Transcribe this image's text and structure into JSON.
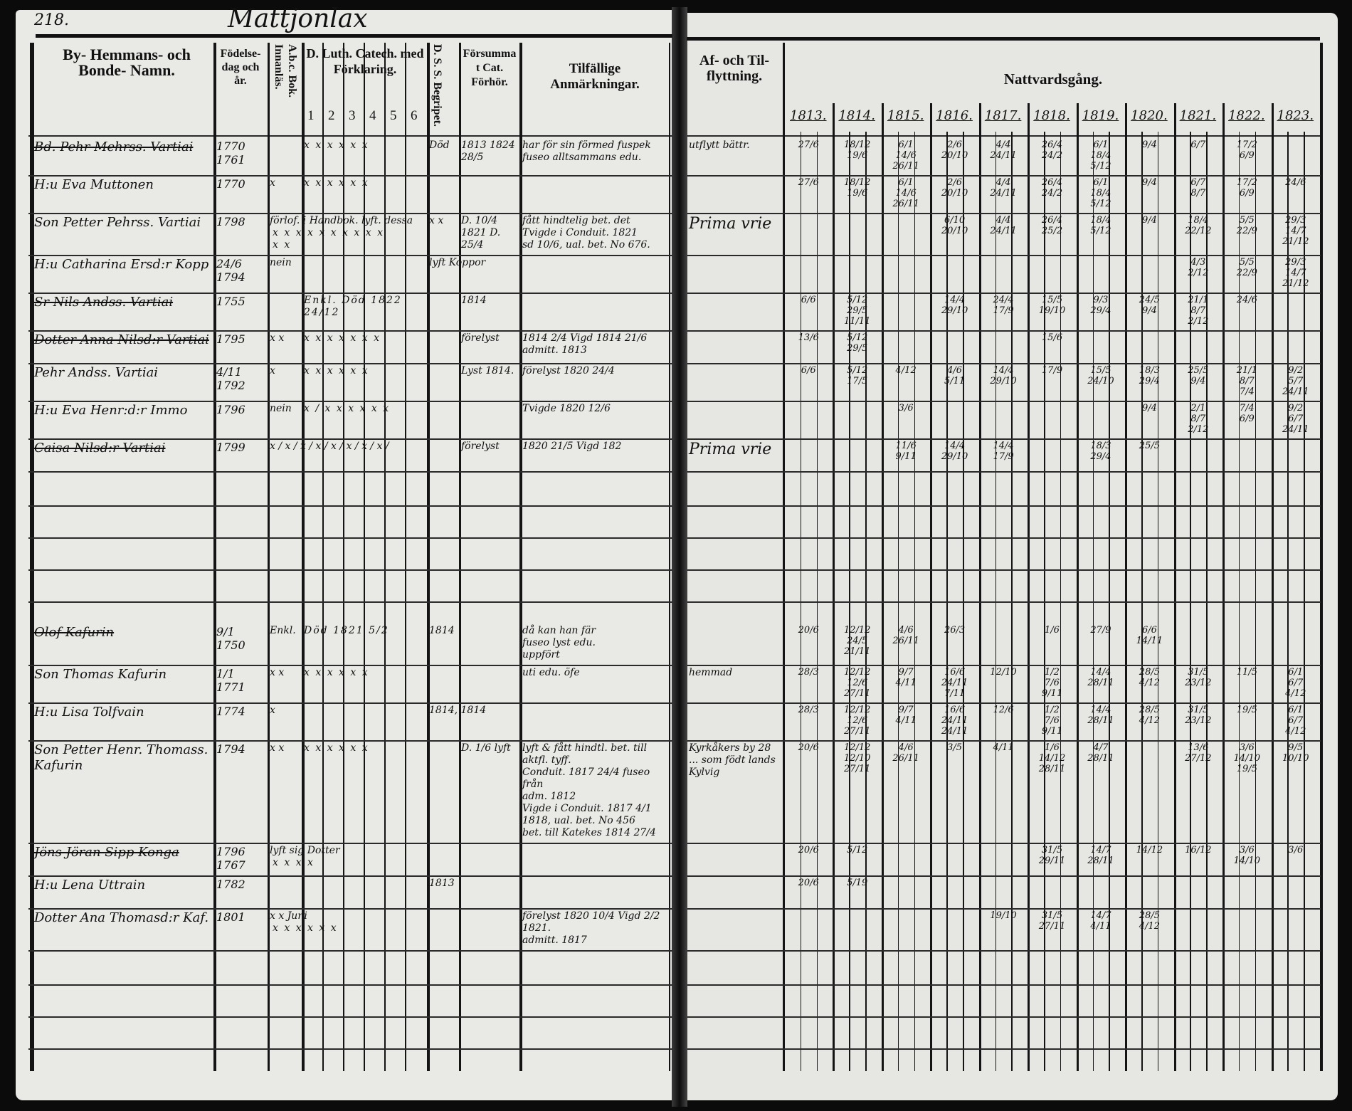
{
  "page_number": "218.",
  "parish_title": "Mattjonlax",
  "headers": {
    "name": "By- Hemmans- och Bonde- Namn.",
    "birth": "Födelse-dag och år.",
    "abc": "A.b.c. Bok. Innanläs.",
    "catechism": "D. Luth. Catech. med Förklaring.",
    "catechism_parts": [
      "1",
      "2",
      "3",
      "4",
      "5",
      "6"
    ],
    "dss": "D. S. S. Begripet.",
    "forsummat": "Försummat Cat. Förhör.",
    "remarks": "Tilfällige Anmärkningar.",
    "flytt": "Af- och Til- flyttning.",
    "communion": "Nattvardsgång.",
    "years": [
      "1813.",
      "1814.",
      "1815.",
      "1816.",
      "1817.",
      "1818.",
      "1819.",
      "1820.",
      "1821.",
      "1822.",
      "1823."
    ]
  },
  "rows": [
    {
      "name": "Bd. Pehr Mehrss. Vartiai",
      "struck": true,
      "birth": "1770 1761",
      "abc": "",
      "catechism": "x x x x x x",
      "dss": "Död",
      "forsummat": "1813 1824 28/5",
      "remarks": [
        "har för sin förmed fuspek",
        "fuseo alltsammans edu."
      ],
      "flytt": "utflytt bättr.",
      "communion": [
        [
          "27/6"
        ],
        [
          "18/12",
          "19/6"
        ],
        [
          "6/1",
          "14/6",
          "26/11"
        ],
        [
          "2/6",
          "20/10"
        ],
        [
          "4/4",
          "24/11"
        ],
        [
          "26/4",
          "24/2"
        ],
        [
          "6/1",
          "18/4",
          "5/12"
        ],
        [
          "9/4"
        ],
        [
          "6/7"
        ],
        [
          "17/2",
          "6/9"
        ],
        []
      ]
    },
    {
      "name": "H:u Eva Muttonen",
      "struck": false,
      "birth": "1770",
      "abc": "x",
      "catechism": "x x x x x x",
      "dss": "",
      "forsummat": "",
      "remarks": [],
      "flytt": "",
      "communion": [
        [
          "27/6"
        ],
        [
          "18/12",
          "19/6"
        ],
        [
          "6/1",
          "14/6",
          "26/11"
        ],
        [
          "2/6",
          "20/10"
        ],
        [
          "4/4",
          "24/11"
        ],
        [
          "26/4",
          "24/2"
        ],
        [
          "6/1",
          "18/4",
          "5/12"
        ],
        [
          "9/4"
        ],
        [
          "6/7",
          "8/7"
        ],
        [
          "17/2",
          "6/9"
        ],
        [
          "24/6"
        ]
      ]
    },
    {
      "name": "Son Petter Pehrss. Vartiai",
      "struck": false,
      "birth": "1798",
      "abc": "förlof. i Handbok. lyft. dessa",
      "catechism": "x x x x x x x x x x x x",
      "dss": "x x",
      "forsummat": "D. 10/4 1821 D. 25/4",
      "remarks": [
        "fått hindtelig bet. det",
        "Tvigde i Conduit. 1821",
        "sd 10/6, ual. bet. No 676."
      ],
      "flytt": "",
      "note": "Prima vrie",
      "communion": [
        [],
        [],
        [],
        [
          "6/10",
          "20/10"
        ],
        [
          "4/4",
          "24/11"
        ],
        [
          "26/4",
          "25/2"
        ],
        [
          "18/4",
          "5/12"
        ],
        [
          "9/4"
        ],
        [
          "18/4",
          "22/12"
        ],
        [
          "5/5",
          "22/9"
        ],
        [
          "29/3",
          "14/7",
          "21/12"
        ]
      ]
    },
    {
      "name": "H:u Catharina Ersd:r Kopp",
      "struck": false,
      "birth": "24/6 1794",
      "abc": "nein",
      "catechism": "",
      "dss": "lyft Koppor",
      "forsummat": "",
      "remarks": [],
      "flytt": "",
      "communion": [
        [],
        [],
        [],
        [],
        [],
        [],
        [],
        [],
        [
          "4/3",
          "2/12"
        ],
        [
          "5/5",
          "22/9"
        ],
        [
          "29/3",
          "14/7",
          "21/12"
        ]
      ]
    },
    {
      "name": "Sr Nils Andss. Vartiai",
      "struck": true,
      "birth": "1755",
      "abc": "",
      "catechism": "Enkl. Död 1822 24/12",
      "dss": "",
      "forsummat": "1814",
      "remarks": [],
      "flytt": "",
      "communion": [
        [
          "6/6"
        ],
        [
          "5/12",
          "29/5",
          "11/11"
        ],
        [],
        [
          "14/4",
          "29/10"
        ],
        [
          "24/4",
          "17/9"
        ],
        [
          "15/5",
          "19/10"
        ],
        [
          "9/3",
          "29/4"
        ],
        [
          "24/5",
          "9/4"
        ],
        [
          "21/1",
          "8/7",
          "2/12"
        ],
        [
          "24/6"
        ],
        []
      ]
    },
    {
      "name": "Dotter Anna Nilsd:r Vartiai",
      "struck": true,
      "birth": "1795",
      "abc": "x x",
      "catechism": "x x x x x x x",
      "dss": "",
      "forsummat": "förelyst",
      "remarks": [
        "1814 2/4 Vigd 1814 21/6",
        "admitt. 1813"
      ],
      "flytt": "",
      "communion": [
        [
          "13/6"
        ],
        [
          "5/12",
          "29/5"
        ],
        [],
        [],
        [],
        [
          "15/6"
        ],
        [],
        [],
        [],
        [],
        []
      ]
    },
    {
      "name": "Pehr Andss. Vartiai",
      "struck": false,
      "birth": "4/11 1792",
      "abc": "x",
      "catechism": "x x x x x x",
      "dss": "",
      "forsummat": "Lyst 1814.",
      "remarks": [
        "förelyst 1820 24/4"
      ],
      "flytt": "",
      "communion": [
        [
          "6/6"
        ],
        [
          "5/12",
          "17/5"
        ],
        [
          "4/12"
        ],
        [
          "4/6",
          "5/11"
        ],
        [
          "14/4",
          "29/10"
        ],
        [
          "17/9"
        ],
        [
          "15/5",
          "24/10"
        ],
        [
          "18/3",
          "29/4"
        ],
        [
          "25/5",
          "9/4"
        ],
        [
          "21/1",
          "8/7",
          "7/4"
        ],
        [
          "9/2",
          "5/7",
          "24/11"
        ]
      ]
    },
    {
      "name": "H:u Eva Henr:d:r Immo",
      "struck": false,
      "birth": "1796",
      "abc": "nein",
      "catechism": "x / x x x x x x",
      "dss": "",
      "forsummat": "",
      "remarks": [
        "Tvigde 1820 12/6"
      ],
      "flytt": "",
      "communion": [
        [],
        [],
        [
          "3/6"
        ],
        [],
        [],
        [],
        [],
        [
          "9/4"
        ],
        [
          "2/1",
          "8/7",
          "2/12"
        ],
        [
          "7/4",
          "6/9"
        ],
        [
          "9/2",
          "6/7",
          "24/11"
        ]
      ]
    },
    {
      "name": "Caisa Nilsd:r Vartiai",
      "struck": true,
      "birth": "1799",
      "abc": "x / x / x / x / x / x / x / x /",
      "catechism": "",
      "dss": "",
      "forsummat": "förelyst",
      "remarks": [
        "1820 21/5 Vigd 182"
      ],
      "flytt": "",
      "note": "Prima vrie",
      "communion": [
        [],
        [],
        [
          "11/6",
          "9/11"
        ],
        [
          "14/4",
          "29/10"
        ],
        [
          "14/4",
          "17/9"
        ],
        [],
        [
          "18/3",
          "29/4"
        ],
        [
          "25/5"
        ],
        [],
        [],
        []
      ]
    },
    {
      "name": "Olof Kafurin",
      "struck": true,
      "birth": "9/1 1750",
      "abc": "Enkl.",
      "catechism": "Död 1821 5/2",
      "dss": "1814",
      "forsummat": "",
      "remarks": [
        "då kan han fär",
        "fuseo lyst edu.",
        "uppfört"
      ],
      "flytt": "",
      "communion": [
        [
          "20/6"
        ],
        [
          "12/12",
          "24/5",
          "21/11"
        ],
        [
          "4/6",
          "26/11"
        ],
        [
          "26/3"
        ],
        [],
        [
          "1/6"
        ],
        [
          "27/9"
        ],
        [
          "6/6",
          "14/11"
        ],
        [],
        [],
        []
      ]
    },
    {
      "name": "Son Thomas Kafurin",
      "struck": false,
      "birth": "1/1 1771",
      "abc": "x x",
      "catechism": "x x x x x x",
      "dss": "",
      "forsummat": "",
      "remarks": [
        "uti edu. öfe"
      ],
      "flytt": "hemmad",
      "communion": [
        [
          "28/3"
        ],
        [
          "12/12",
          "12/6",
          "27/11"
        ],
        [
          "9/7",
          "4/11"
        ],
        [
          "16/6",
          "24/11",
          "7/11"
        ],
        [
          "12/10"
        ],
        [
          "1/2",
          "7/6",
          "9/11"
        ],
        [
          "14/4",
          "28/11"
        ],
        [
          "28/5",
          "4/12"
        ],
        [
          "31/5",
          "23/12"
        ],
        [
          "11/5"
        ],
        [
          "6/1",
          "6/7",
          "4/12"
        ]
      ]
    },
    {
      "name": "H:u Lisa Tolfvain",
      "struck": false,
      "birth": "1774",
      "abc": "x",
      "catechism": "",
      "dss": "1814, 1814",
      "forsummat": "",
      "remarks": [],
      "flytt": "",
      "communion": [
        [
          "28/3"
        ],
        [
          "12/12",
          "12/6",
          "27/11"
        ],
        [
          "9/7",
          "4/11"
        ],
        [
          "16/6",
          "24/11",
          "24/11"
        ],
        [
          "12/6"
        ],
        [
          "1/2",
          "7/6",
          "9/11"
        ],
        [
          "14/4",
          "28/11"
        ],
        [
          "28/5",
          "4/12"
        ],
        [
          "31/5",
          "23/12"
        ],
        [
          "19/5"
        ],
        [
          "6/1",
          "6/7",
          "4/12"
        ]
      ]
    },
    {
      "name": "Son Petter Henr. Thomass. Kafurin",
      "struck": false,
      "birth": "1794",
      "abc": "x x",
      "catechism": "x x x x x x",
      "dss": "",
      "forsummat": "D. 1/6 lyft",
      "remarks": [
        "lyft & fått hindtl. bet. till aktfl. tyff.",
        "Conduit. 1817 24/4 fuseo från",
        "adm. 1812",
        "Vigde i Conduit. 1817 4/1 1818, ual. bet. No 456",
        "bet. till Katekes 1814 27/4"
      ],
      "flytt": "Kyrkåkers by 28 ... som födt lands Kylvig",
      "communion": [
        [
          "20/6"
        ],
        [
          "12/12",
          "12/10",
          "27/11"
        ],
        [
          "4/6",
          "26/11"
        ],
        [
          "3/5"
        ],
        [
          "4/11"
        ],
        [
          "1/6",
          "14/12",
          "28/11"
        ],
        [
          "4/7",
          "28/11"
        ],
        [],
        [
          "13/6",
          "27/12"
        ],
        [
          "3/6",
          "14/10",
          "19/5"
        ],
        [
          "9/5",
          "10/10"
        ]
      ]
    },
    {
      "name": "Jöns Jöran Sipp Konga",
      "struck": true,
      "birth": "1796 1767",
      "abc": "lyft sig Dotter",
      "catechism": "x x x x",
      "dss": "",
      "forsummat": "",
      "remarks": [],
      "flytt": "",
      "communion": [
        [
          "20/6"
        ],
        [
          "5/12"
        ],
        [],
        [],
        [],
        [
          "31/5",
          "29/11"
        ],
        [
          "14/7",
          "28/11"
        ],
        [
          "14/12"
        ],
        [
          "16/12"
        ],
        [
          "3/6",
          "14/10"
        ],
        [
          "3/6"
        ]
      ]
    },
    {
      "name": "H:u Lena Uttrain",
      "struck": false,
      "birth": "1782",
      "abc": "",
      "catechism": "",
      "dss": "1813",
      "forsummat": "",
      "remarks": [],
      "flytt": "",
      "communion": [
        [
          "20/6"
        ],
        [
          "5/19"
        ],
        [],
        [],
        [],
        [],
        [],
        [],
        [],
        [],
        []
      ]
    },
    {
      "name": "Dotter Ana Thomasd:r Kaf.",
      "struck": false,
      "birth": "1801",
      "abc": "x x Juni",
      "catechism": "x x x x x x",
      "dss": "",
      "forsummat": "",
      "remarks": [
        "förelyst 1820 10/4 Vigd 2/2 1821.",
        "admitt. 1817"
      ],
      "flytt": "",
      "communion": [
        [],
        [],
        [],
        [],
        [
          "19/10"
        ],
        [
          "31/5",
          "27/11"
        ],
        [
          "14/7",
          "4/11"
        ],
        [
          "28/5",
          "4/12"
        ],
        [],
        [],
        []
      ]
    }
  ],
  "colors": {
    "paper": "#e9e9e6",
    "ink": "#111111",
    "background": "#0b0b0b"
  }
}
